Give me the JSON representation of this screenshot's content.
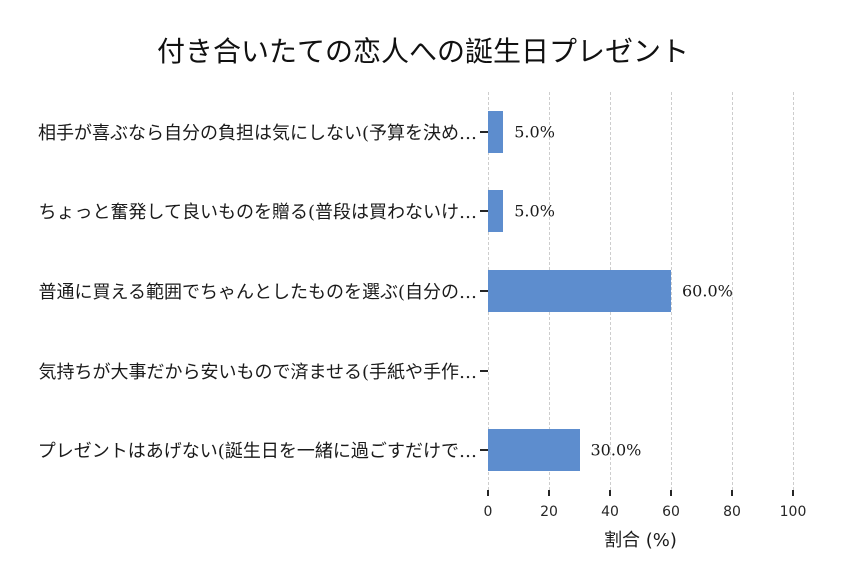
{
  "chart_data": {
    "type": "bar",
    "orientation": "horizontal",
    "title": "付き合いたての恋人への誕生日プレゼント",
    "categories": [
      "相手が喜ぶなら自分の負担は気にしない(予算を決め…",
      "ちょっと奮発して良いものを贈る(普段は買わないけ…",
      "普通に買える範囲でちゃんとしたものを選ぶ(自分の…",
      "気持ちが大事だから安いもので済ませる(手紙や手作…",
      "プレゼントはあげない(誕生日を一緒に過ごすだけで…"
    ],
    "values": [
      5.0,
      5.0,
      60.0,
      0.0,
      30.0
    ],
    "value_labels": [
      "5.0%",
      "5.0%",
      "60.0%",
      "",
      "30.0%"
    ],
    "xlabel": "割合 (%)",
    "xlim": [
      0,
      100
    ],
    "xticks": [
      0,
      20,
      40,
      60,
      80,
      100
    ],
    "grid": {
      "axis": "x",
      "style": "dashed",
      "color": "#cdcdcd"
    },
    "legend": "none",
    "bar_color": "#5d8dce",
    "tick_color": "#262626",
    "background": "#ffffff"
  }
}
